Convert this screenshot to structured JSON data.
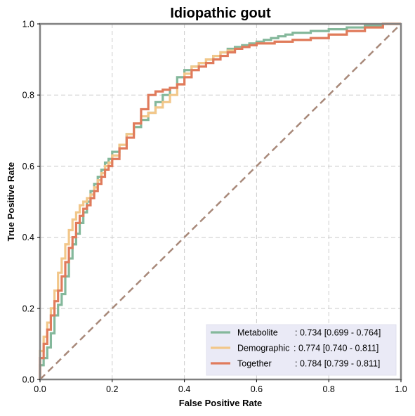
{
  "chart_data": {
    "type": "line",
    "title": "Idiopathic gout",
    "xlabel": "False Positive Rate",
    "ylabel": "True Positive Rate",
    "xlim": [
      0,
      1
    ],
    "ylim": [
      0,
      1
    ],
    "xticks": [
      "0.0",
      "0.2",
      "0.4",
      "0.6",
      "0.8",
      "1.0"
    ],
    "yticks": [
      "0.0",
      "0.2",
      "0.4",
      "0.6",
      "0.8",
      "1.0"
    ],
    "grid": true,
    "legend_position": "bottom-right",
    "series": [
      {
        "name": "Metabolite",
        "label_suffix": ": 0.734 [0.699 - 0.764]",
        "color": "#84b89b",
        "x": [
          0,
          0.01,
          0.02,
          0.03,
          0.04,
          0.05,
          0.06,
          0.07,
          0.08,
          0.09,
          0.1,
          0.11,
          0.12,
          0.13,
          0.14,
          0.15,
          0.16,
          0.17,
          0.18,
          0.19,
          0.2,
          0.22,
          0.24,
          0.26,
          0.28,
          0.3,
          0.32,
          0.34,
          0.36,
          0.38,
          0.4,
          0.42,
          0.44,
          0.46,
          0.48,
          0.5,
          0.52,
          0.54,
          0.56,
          0.58,
          0.6,
          0.62,
          0.64,
          0.66,
          0.68,
          0.7,
          0.75,
          0.8,
          0.85,
          0.9,
          0.95,
          1.0
        ],
        "y": [
          0,
          0.04,
          0.06,
          0.09,
          0.13,
          0.18,
          0.21,
          0.24,
          0.29,
          0.34,
          0.38,
          0.41,
          0.44,
          0.47,
          0.5,
          0.53,
          0.55,
          0.57,
          0.59,
          0.61,
          0.62,
          0.64,
          0.66,
          0.69,
          0.71,
          0.73,
          0.75,
          0.78,
          0.8,
          0.82,
          0.85,
          0.87,
          0.88,
          0.89,
          0.9,
          0.91,
          0.92,
          0.93,
          0.935,
          0.94,
          0.945,
          0.95,
          0.955,
          0.96,
          0.965,
          0.97,
          0.975,
          0.98,
          0.985,
          0.99,
          0.995,
          1.0
        ]
      },
      {
        "name": "Demographic",
        "label_suffix": ": 0.774 [0.740 - 0.811]",
        "color": "#f2c78a",
        "x": [
          0,
          0.01,
          0.02,
          0.03,
          0.04,
          0.05,
          0.06,
          0.07,
          0.08,
          0.09,
          0.1,
          0.11,
          0.12,
          0.13,
          0.14,
          0.15,
          0.16,
          0.17,
          0.18,
          0.19,
          0.2,
          0.22,
          0.24,
          0.26,
          0.28,
          0.3,
          0.32,
          0.34,
          0.36,
          0.38,
          0.4,
          0.42,
          0.44,
          0.46,
          0.48,
          0.5,
          0.52,
          0.54,
          0.56,
          0.58,
          0.6,
          0.65,
          0.7,
          0.75,
          0.8,
          0.85,
          0.9,
          0.95,
          1.0
        ],
        "y": [
          0,
          0.08,
          0.12,
          0.16,
          0.2,
          0.25,
          0.3,
          0.34,
          0.38,
          0.42,
          0.45,
          0.47,
          0.49,
          0.5,
          0.51,
          0.52,
          0.54,
          0.56,
          0.58,
          0.6,
          0.61,
          0.63,
          0.66,
          0.69,
          0.72,
          0.74,
          0.75,
          0.765,
          0.78,
          0.8,
          0.83,
          0.86,
          0.88,
          0.89,
          0.9,
          0.91,
          0.92,
          0.925,
          0.93,
          0.935,
          0.94,
          0.945,
          0.95,
          0.955,
          0.96,
          0.97,
          0.98,
          0.99,
          1.0
        ]
      },
      {
        "name": "Together",
        "label_suffix": ": 0.784 [0.739 - 0.811]",
        "color": "#e07b5c",
        "x": [
          0,
          0.01,
          0.02,
          0.03,
          0.04,
          0.05,
          0.06,
          0.07,
          0.08,
          0.09,
          0.1,
          0.11,
          0.12,
          0.13,
          0.14,
          0.15,
          0.16,
          0.17,
          0.18,
          0.19,
          0.2,
          0.22,
          0.24,
          0.26,
          0.28,
          0.3,
          0.32,
          0.34,
          0.36,
          0.38,
          0.4,
          0.42,
          0.44,
          0.46,
          0.48,
          0.5,
          0.52,
          0.54,
          0.56,
          0.58,
          0.6,
          0.65,
          0.7,
          0.75,
          0.8,
          0.85,
          0.9,
          0.95,
          1.0
        ],
        "y": [
          0,
          0.06,
          0.1,
          0.14,
          0.18,
          0.22,
          0.25,
          0.29,
          0.33,
          0.37,
          0.4,
          0.44,
          0.46,
          0.48,
          0.49,
          0.51,
          0.53,
          0.55,
          0.57,
          0.59,
          0.6,
          0.62,
          0.65,
          0.68,
          0.72,
          0.76,
          0.8,
          0.81,
          0.815,
          0.82,
          0.83,
          0.85,
          0.87,
          0.88,
          0.89,
          0.9,
          0.91,
          0.92,
          0.93,
          0.935,
          0.94,
          0.945,
          0.95,
          0.955,
          0.96,
          0.97,
          0.98,
          0.99,
          1.0
        ]
      }
    ],
    "reference_line": {
      "color": "#a8897a",
      "x": [
        0,
        1
      ],
      "y": [
        0,
        1
      ]
    }
  }
}
